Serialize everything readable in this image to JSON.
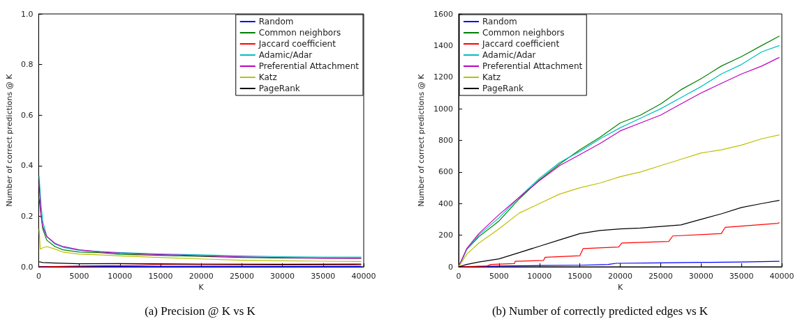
{
  "chart_data": [
    {
      "type": "line",
      "title": "(a) Precision @ K vs K",
      "xlabel": "K",
      "ylabel": "Number of correct predictions @ K",
      "xlim": [
        0,
        40000
      ],
      "xticks": [
        0,
        5000,
        10000,
        15000,
        20000,
        25000,
        30000,
        35000,
        40000
      ],
      "ylim": [
        0,
        1
      ],
      "yticks": [
        {
          "value": 0,
          "label": "0.0"
        },
        0.2,
        0.4,
        0.6,
        0.8,
        {
          "value": 1,
          "label": "1.0"
        }
      ],
      "grid": false,
      "legend": "top right",
      "line_style": "solid",
      "marker": "none",
      "series": [
        {
          "name": "Random",
          "color": "#0000ff",
          "x": [
            50,
            5000,
            10000,
            20000,
            30000,
            39700
          ],
          "values": [
            0.001,
            0.001,
            0.001,
            0.001,
            0.001,
            0.001
          ]
        },
        {
          "name": "Common neighbors",
          "color": "#008000",
          "x": [
            50,
            300,
            500,
            1000,
            2000,
            3000,
            5000,
            7500,
            10000,
            15000,
            20000,
            25000,
            30000,
            35000,
            39700
          ],
          "values": [
            0.27,
            0.2,
            0.15,
            0.105,
            0.08,
            0.067,
            0.058,
            0.056,
            0.049,
            0.045,
            0.041,
            0.037,
            0.035,
            0.034,
            0.034
          ]
        },
        {
          "name": "Jaccard coefficient",
          "color": "#ff0000",
          "x": [
            50,
            5000,
            10000,
            15000,
            20000,
            30000,
            39700
          ],
          "values": [
            0,
            0.003,
            0.005,
            0.008,
            0.007,
            0.007,
            0.007
          ]
        },
        {
          "name": "Adamic/Adar",
          "color": "#00bfbf",
          "x": [
            50,
            300,
            500,
            1000,
            2000,
            3000,
            5000,
            7500,
            10000,
            15000,
            20000,
            25000,
            30000,
            35000,
            39700
          ],
          "values": [
            0.36,
            0.24,
            0.18,
            0.12,
            0.09,
            0.077,
            0.065,
            0.06,
            0.056,
            0.051,
            0.047,
            0.043,
            0.04,
            0.038,
            0.038
          ]
        },
        {
          "name": "Preferential Attachment",
          "color": "#bf00bf",
          "x": [
            50,
            300,
            500,
            1000,
            2000,
            3000,
            5000,
            7500,
            10000,
            15000,
            20000,
            25000,
            30000,
            35000,
            39700
          ],
          "values": [
            0.33,
            0.2,
            0.16,
            0.12,
            0.093,
            0.08,
            0.067,
            0.059,
            0.054,
            0.048,
            0.044,
            0.039,
            0.036,
            0.034,
            0.033
          ]
        },
        {
          "name": "Katz",
          "color": "#bfbf00",
          "x": [
            50,
            200,
            500,
            1000,
            2000,
            3000,
            5000,
            7500,
            10000,
            15000,
            20000,
            25000,
            30000,
            35000,
            39700
          ],
          "values": [
            0.15,
            0.07,
            0.075,
            0.08,
            0.07,
            0.058,
            0.05,
            0.047,
            0.043,
            0.037,
            0.031,
            0.026,
            0.024,
            0.022,
            0.021
          ]
        },
        {
          "name": "PageRank",
          "color": "#000000",
          "x": [
            50,
            500,
            2000,
            5000,
            10000,
            20000,
            30000,
            39700
          ],
          "values": [
            0.02,
            0.017,
            0.015,
            0.012,
            0.013,
            0.011,
            0.01,
            0.011
          ]
        }
      ]
    },
    {
      "type": "line",
      "title": "(b) Number of correctly predicted edges vs K",
      "xlabel": "K",
      "ylabel": "Number of correct predictions @ K",
      "xlim": [
        0,
        40000
      ],
      "xticks": [
        0,
        5000,
        10000,
        15000,
        20000,
        25000,
        30000,
        35000,
        40000
      ],
      "ylim": [
        0,
        1600
      ],
      "yticks": [
        0,
        200,
        400,
        600,
        800,
        1000,
        1200,
        1400,
        1600
      ],
      "grid": false,
      "legend": "top left",
      "line_style": "solid",
      "marker": "none",
      "series": [
        {
          "name": "Random",
          "color": "#0000ff",
          "x": [
            0,
            5000,
            10000,
            15000,
            18500,
            19500,
            25000,
            30000,
            35000,
            39700
          ],
          "values": [
            0,
            5,
            8,
            10,
            15,
            22,
            25,
            28,
            30,
            35
          ]
        },
        {
          "name": "Common neighbors",
          "color": "#008000",
          "x": [
            0,
            1000,
            2500,
            5000,
            7500,
            10000,
            12500,
            15000,
            17500,
            20000,
            22500,
            25000,
            27500,
            30000,
            32500,
            35000,
            37500,
            39700
          ],
          "values": [
            0,
            110,
            190,
            290,
            430,
            550,
            650,
            740,
            820,
            910,
            960,
            1030,
            1120,
            1190,
            1270,
            1330,
            1400,
            1460
          ]
        },
        {
          "name": "Jaccard coefficient",
          "color": "#ff0000",
          "x": [
            0,
            3500,
            4000,
            6900,
            7000,
            10500,
            10700,
            15000,
            15400,
            19800,
            20200,
            26000,
            26500,
            32500,
            33000,
            39500,
            39700
          ],
          "values": [
            0,
            5,
            15,
            20,
            35,
            40,
            60,
            70,
            115,
            125,
            150,
            160,
            195,
            210,
            250,
            275,
            280
          ]
        },
        {
          "name": "Adamic/Adar",
          "color": "#00bfbf",
          "x": [
            0,
            1000,
            2500,
            5000,
            7500,
            10000,
            12500,
            15000,
            17500,
            20000,
            22500,
            25000,
            27500,
            30000,
            32500,
            35000,
            37500,
            39700
          ],
          "values": [
            0,
            110,
            200,
            310,
            440,
            560,
            660,
            730,
            810,
            880,
            940,
            1000,
            1070,
            1140,
            1220,
            1280,
            1360,
            1400
          ]
        },
        {
          "name": "Preferential Attachment",
          "color": "#bf00bf",
          "x": [
            0,
            1000,
            2500,
            5000,
            7500,
            10000,
            12500,
            15000,
            17500,
            20000,
            22500,
            25000,
            27500,
            30000,
            32500,
            35000,
            37500,
            39700
          ],
          "values": [
            0,
            115,
            210,
            330,
            440,
            545,
            640,
            710,
            780,
            860,
            910,
            960,
            1030,
            1100,
            1160,
            1220,
            1270,
            1325
          ]
        },
        {
          "name": "Katz",
          "color": "#bfbf00",
          "x": [
            0,
            1000,
            2500,
            5000,
            7500,
            10000,
            12500,
            15000,
            17500,
            20000,
            22500,
            25000,
            27500,
            30000,
            32500,
            35000,
            37500,
            39700
          ],
          "values": [
            0,
            80,
            150,
            240,
            340,
            400,
            460,
            500,
            530,
            570,
            600,
            640,
            680,
            720,
            740,
            770,
            810,
            835
          ]
        },
        {
          "name": "PageRank",
          "color": "#000000",
          "x": [
            0,
            1000,
            2500,
            5000,
            7500,
            10000,
            12500,
            15000,
            17500,
            20000,
            22500,
            25000,
            27500,
            30000,
            32500,
            35000,
            37500,
            39700
          ],
          "values": [
            0,
            15,
            30,
            50,
            90,
            130,
            170,
            210,
            230,
            240,
            245,
            255,
            265,
            300,
            335,
            375,
            400,
            420
          ]
        }
      ]
    }
  ]
}
